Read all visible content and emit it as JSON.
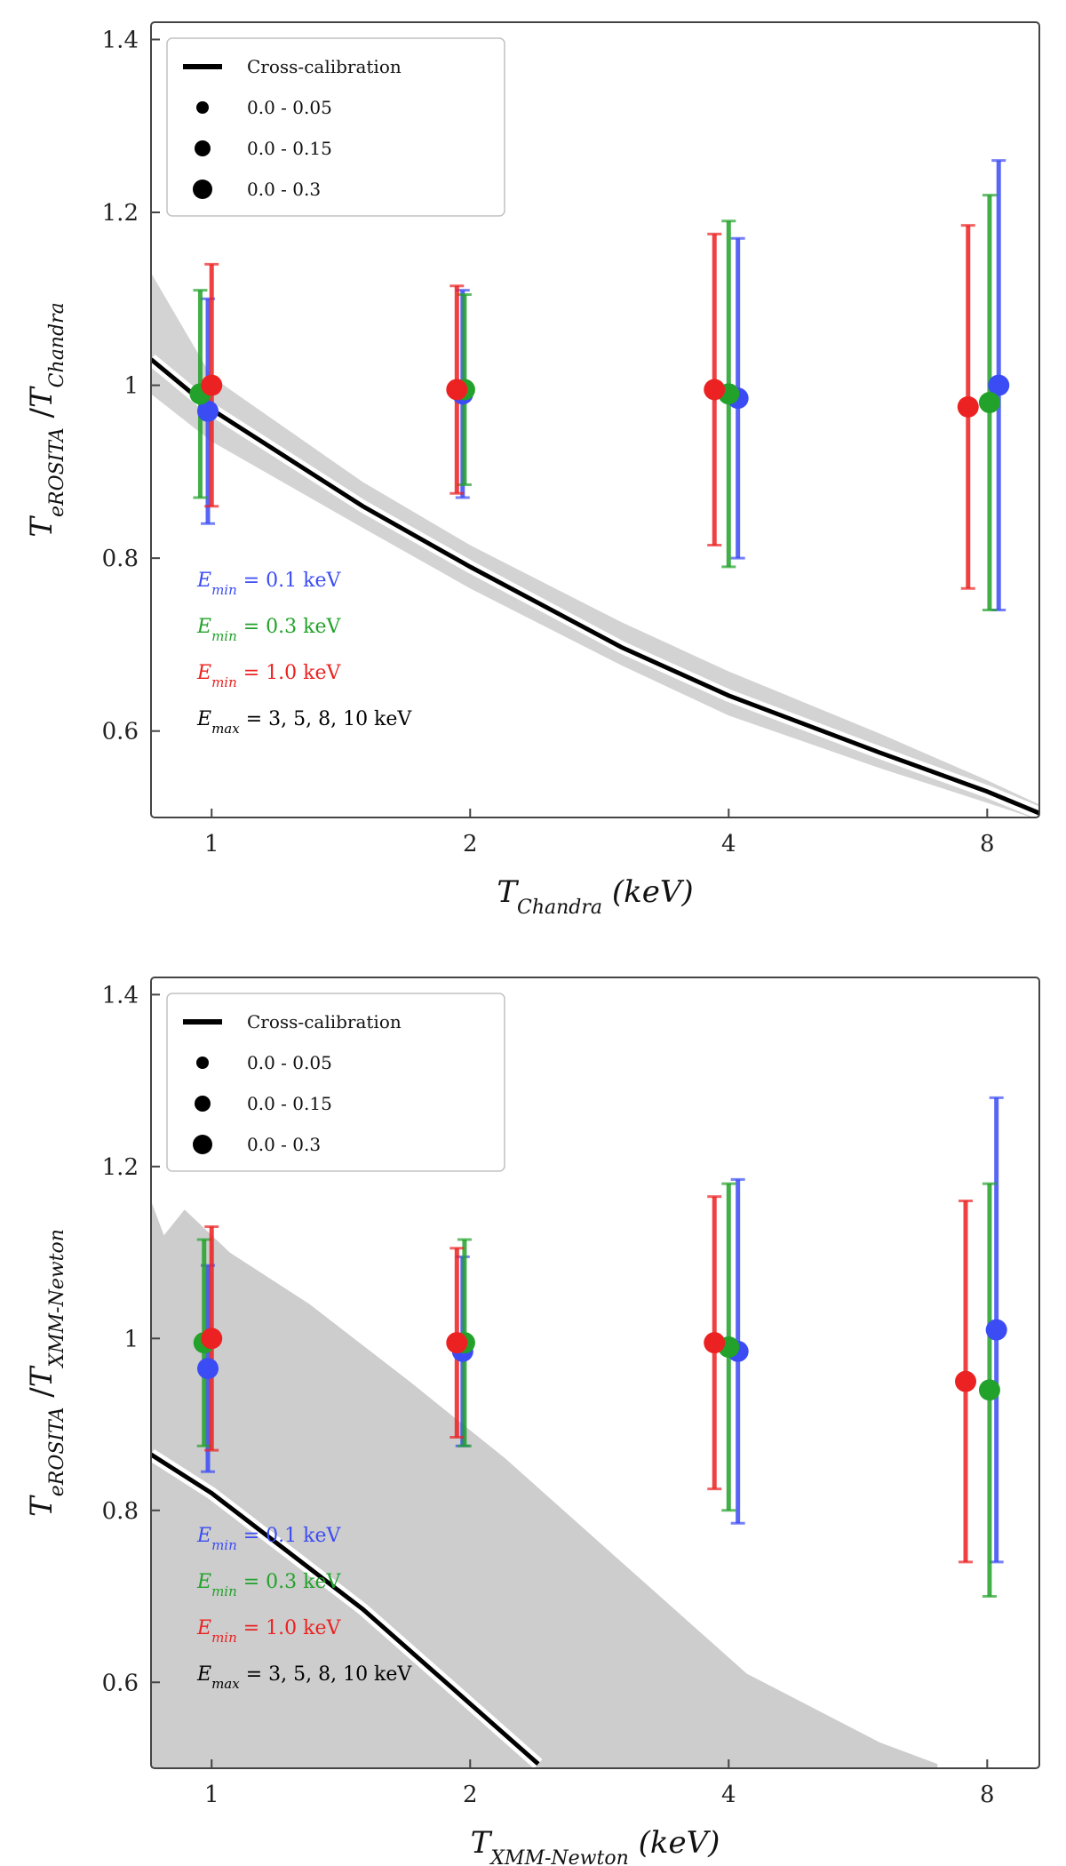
{
  "colors": {
    "blue": "#3b4cf5",
    "green": "#22a22a",
    "red": "#ec2222",
    "black": "#000000",
    "band": "#c4c4c4"
  },
  "chart_data": [
    {
      "type": "scatter",
      "xlabel": "T_Chandra (keV)",
      "ylabel": "T_eROSITA / T_Chandra",
      "xticks": [
        "1",
        "2",
        "4",
        "8"
      ],
      "yticks": [
        "0.6",
        "0.8",
        "1",
        "1.2",
        "1.4"
      ],
      "xlim": [
        0.85,
        9.2
      ],
      "ylim": [
        0.5,
        1.42
      ],
      "xscale": "log",
      "grid": false,
      "legend_position": "top-left",
      "legend": [
        {
          "label": "Cross-calibration",
          "marker": "line"
        },
        {
          "label": "0.0 - 0.05",
          "marker": "dot-small"
        },
        {
          "label": "0.0 - 0.15",
          "marker": "dot-medium"
        },
        {
          "label": "0.0 - 0.3",
          "marker": "dot-large"
        }
      ],
      "annotations": [
        {
          "text": "E_min = 0.1 keV",
          "color": "blue"
        },
        {
          "text": "E_min = 0.3 keV",
          "color": "green"
        },
        {
          "text": "E_min = 1.0 keV",
          "color": "red"
        },
        {
          "text": "E_max = 3, 5, 8, 10 keV",
          "color": "black"
        }
      ],
      "cross_calibration": {
        "name": "Cross-calibration",
        "x": [
          0.85,
          1,
          1.5,
          2,
          3,
          4,
          6,
          8,
          9.2
        ],
        "y": [
          1.03,
          0.972,
          0.86,
          0.79,
          0.697,
          0.641,
          0.575,
          0.53,
          0.505
        ],
        "band_upper": [
          1.13,
          1.01,
          0.888,
          0.815,
          0.726,
          0.669,
          0.597,
          0.543,
          0.515
        ],
        "band_lower": [
          0.99,
          0.935,
          0.835,
          0.765,
          0.676,
          0.618,
          0.557,
          0.517,
          0.497
        ]
      },
      "series": [
        {
          "color": "blue",
          "x": [
            0.99,
            1.96,
            4.1,
            8.25
          ],
          "y": [
            0.97,
            0.99,
            0.985,
            1.0
          ],
          "err": [
            0.13,
            0.12,
            0.185,
            0.26
          ]
        },
        {
          "color": "green",
          "x": [
            0.97,
            1.97,
            4.0,
            8.05
          ],
          "y": [
            0.99,
            0.995,
            0.99,
            0.98
          ],
          "err": [
            0.12,
            0.11,
            0.2,
            0.24
          ]
        },
        {
          "color": "red",
          "x": [
            1.0,
            1.93,
            3.85,
            7.6
          ],
          "y": [
            1.0,
            0.995,
            0.995,
            0.975
          ],
          "err": [
            0.14,
            0.12,
            0.18,
            0.21
          ]
        }
      ]
    },
    {
      "type": "scatter",
      "xlabel": "T_XMM-Newton (keV)",
      "ylabel": "T_eROSITA / T_XMM-Newton",
      "xticks": [
        "1",
        "2",
        "4",
        "8"
      ],
      "yticks": [
        "0.6",
        "0.8",
        "1",
        "1.2",
        "1.4"
      ],
      "xlim": [
        0.85,
        9.2
      ],
      "ylim": [
        0.5,
        1.42
      ],
      "xscale": "log",
      "grid": false,
      "legend_position": "top-left",
      "legend": [
        {
          "label": "Cross-calibration",
          "marker": "line"
        },
        {
          "label": "0.0 - 0.05",
          "marker": "dot-small"
        },
        {
          "label": "0.0 - 0.15",
          "marker": "dot-medium"
        },
        {
          "label": "0.0 - 0.3",
          "marker": "dot-large"
        }
      ],
      "annotations": [
        {
          "text": "E_min = 0.1 keV",
          "color": "blue"
        },
        {
          "text": "E_min = 0.3 keV",
          "color": "green"
        },
        {
          "text": "E_min = 1.0 keV",
          "color": "red"
        },
        {
          "text": "E_max = 3, 5, 8, 10 keV",
          "color": "black"
        }
      ],
      "cross_calibration": {
        "name": "Cross-calibration",
        "x": [
          0.85,
          1,
          1.5,
          2,
          2.4
        ],
        "y": [
          0.865,
          0.82,
          0.685,
          0.575,
          0.505
        ],
        "band_upper": [
          1.16,
          1.12,
          1.15,
          1.1,
          1.04,
          0.95,
          0.86,
          0.74,
          0.61,
          0.53,
          0.505
        ],
        "band_upper_x": [
          0.85,
          0.88,
          0.93,
          1.05,
          1.3,
          1.7,
          2.2,
          3.0,
          4.2,
          6.0,
          7.0
        ],
        "band_lower": [
          0.5
        ]
      },
      "series": [
        {
          "color": "blue",
          "x": [
            0.99,
            1.96,
            4.1,
            8.2
          ],
          "y": [
            0.965,
            0.985,
            0.985,
            1.01
          ],
          "err": [
            0.12,
            0.11,
            0.2,
            0.27
          ]
        },
        {
          "color": "green",
          "x": [
            0.98,
            1.97,
            4.0,
            8.05
          ],
          "y": [
            0.995,
            0.995,
            0.99,
            0.94
          ],
          "err": [
            0.12,
            0.12,
            0.19,
            0.24
          ]
        },
        {
          "color": "red",
          "x": [
            1.0,
            1.93,
            3.85,
            7.55
          ],
          "y": [
            1.0,
            0.995,
            0.995,
            0.95
          ],
          "err": [
            0.13,
            0.11,
            0.17,
            0.21
          ]
        }
      ]
    }
  ]
}
